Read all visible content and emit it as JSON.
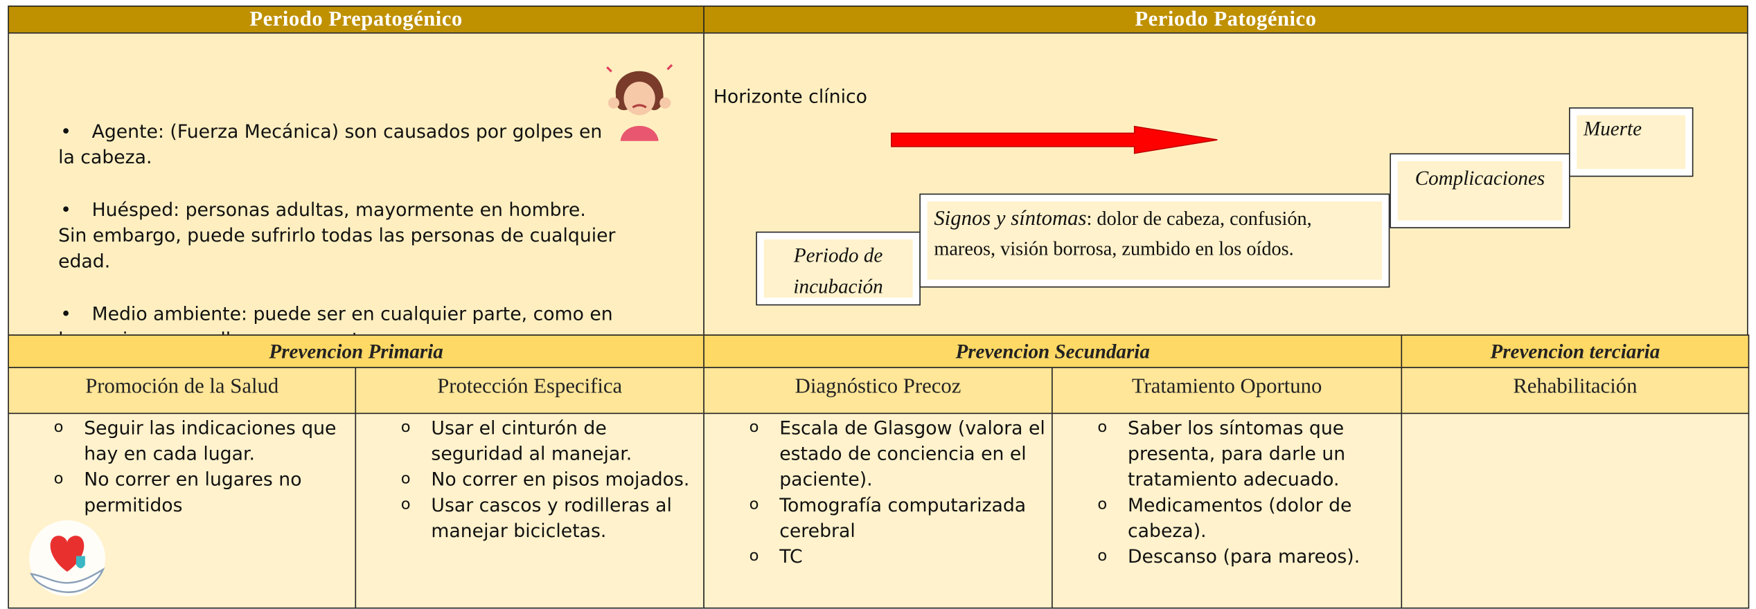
{
  "header": {
    "prepathogenic": "Periodo Prepatogénico",
    "pathogenic": "Periodo Patogénico"
  },
  "prepathogenic": {
    "items": [
      {
        "text": "Agente: (Fuerza Mecánica) son causados por golpes en la cabeza."
      },
      {
        "text": "Huésped: personas adultas, mayormente en hombre.",
        "note": "Sin embargo, puede sufrirlo todas las personas de cualquier edad."
      },
      {
        "text": "Medio ambiente: puede ser en cualquier parte, como en la propia casa, calle, parques, etc."
      }
    ]
  },
  "pathogenic": {
    "horizon": "Horizonte clínico",
    "stages": [
      {
        "label": "Periodo de incubación"
      },
      {
        "label": "Signos y síntomas",
        "detail": ": dolor de cabeza, confusión, mareos, visión borrosa, zumbido en los oídos."
      },
      {
        "label": "Complicaciones"
      },
      {
        "label": "Muerte"
      }
    ]
  },
  "prevention": [
    {
      "title": "Prevencion Primaria",
      "columns": [
        {
          "title": "Promoción de la Salud",
          "items": [
            "Seguir las indicaciones que hay en cada lugar.",
            "No correr en lugares no permitidos"
          ]
        },
        {
          "title": "Protección Especifica",
          "items": [
            "Usar el cinturón de seguridad al manejar.",
            "No correr en pisos mojados.",
            "Usar cascos y rodilleras al manejar bicicletas."
          ]
        }
      ]
    },
    {
      "title": "Prevencion Secundaria",
      "columns": [
        {
          "title": "Diagnóstico Precoz",
          "items": [
            "Escala de Glasgow (valora el estado de conciencia en el paciente).",
            "Tomografía computarizada cerebral",
            "TC"
          ]
        },
        {
          "title": "Tratamiento Oportuno",
          "items": [
            "Saber los síntomas que presenta, para darle un tratamiento adecuado.",
            "Medicamentos (dolor de cabeza).",
            "Descanso (para mareos)."
          ]
        }
      ]
    },
    {
      "title": "Prevencion terciaria",
      "columns": [
        {
          "title": "Rehabilitación",
          "items": []
        }
      ]
    }
  ]
}
